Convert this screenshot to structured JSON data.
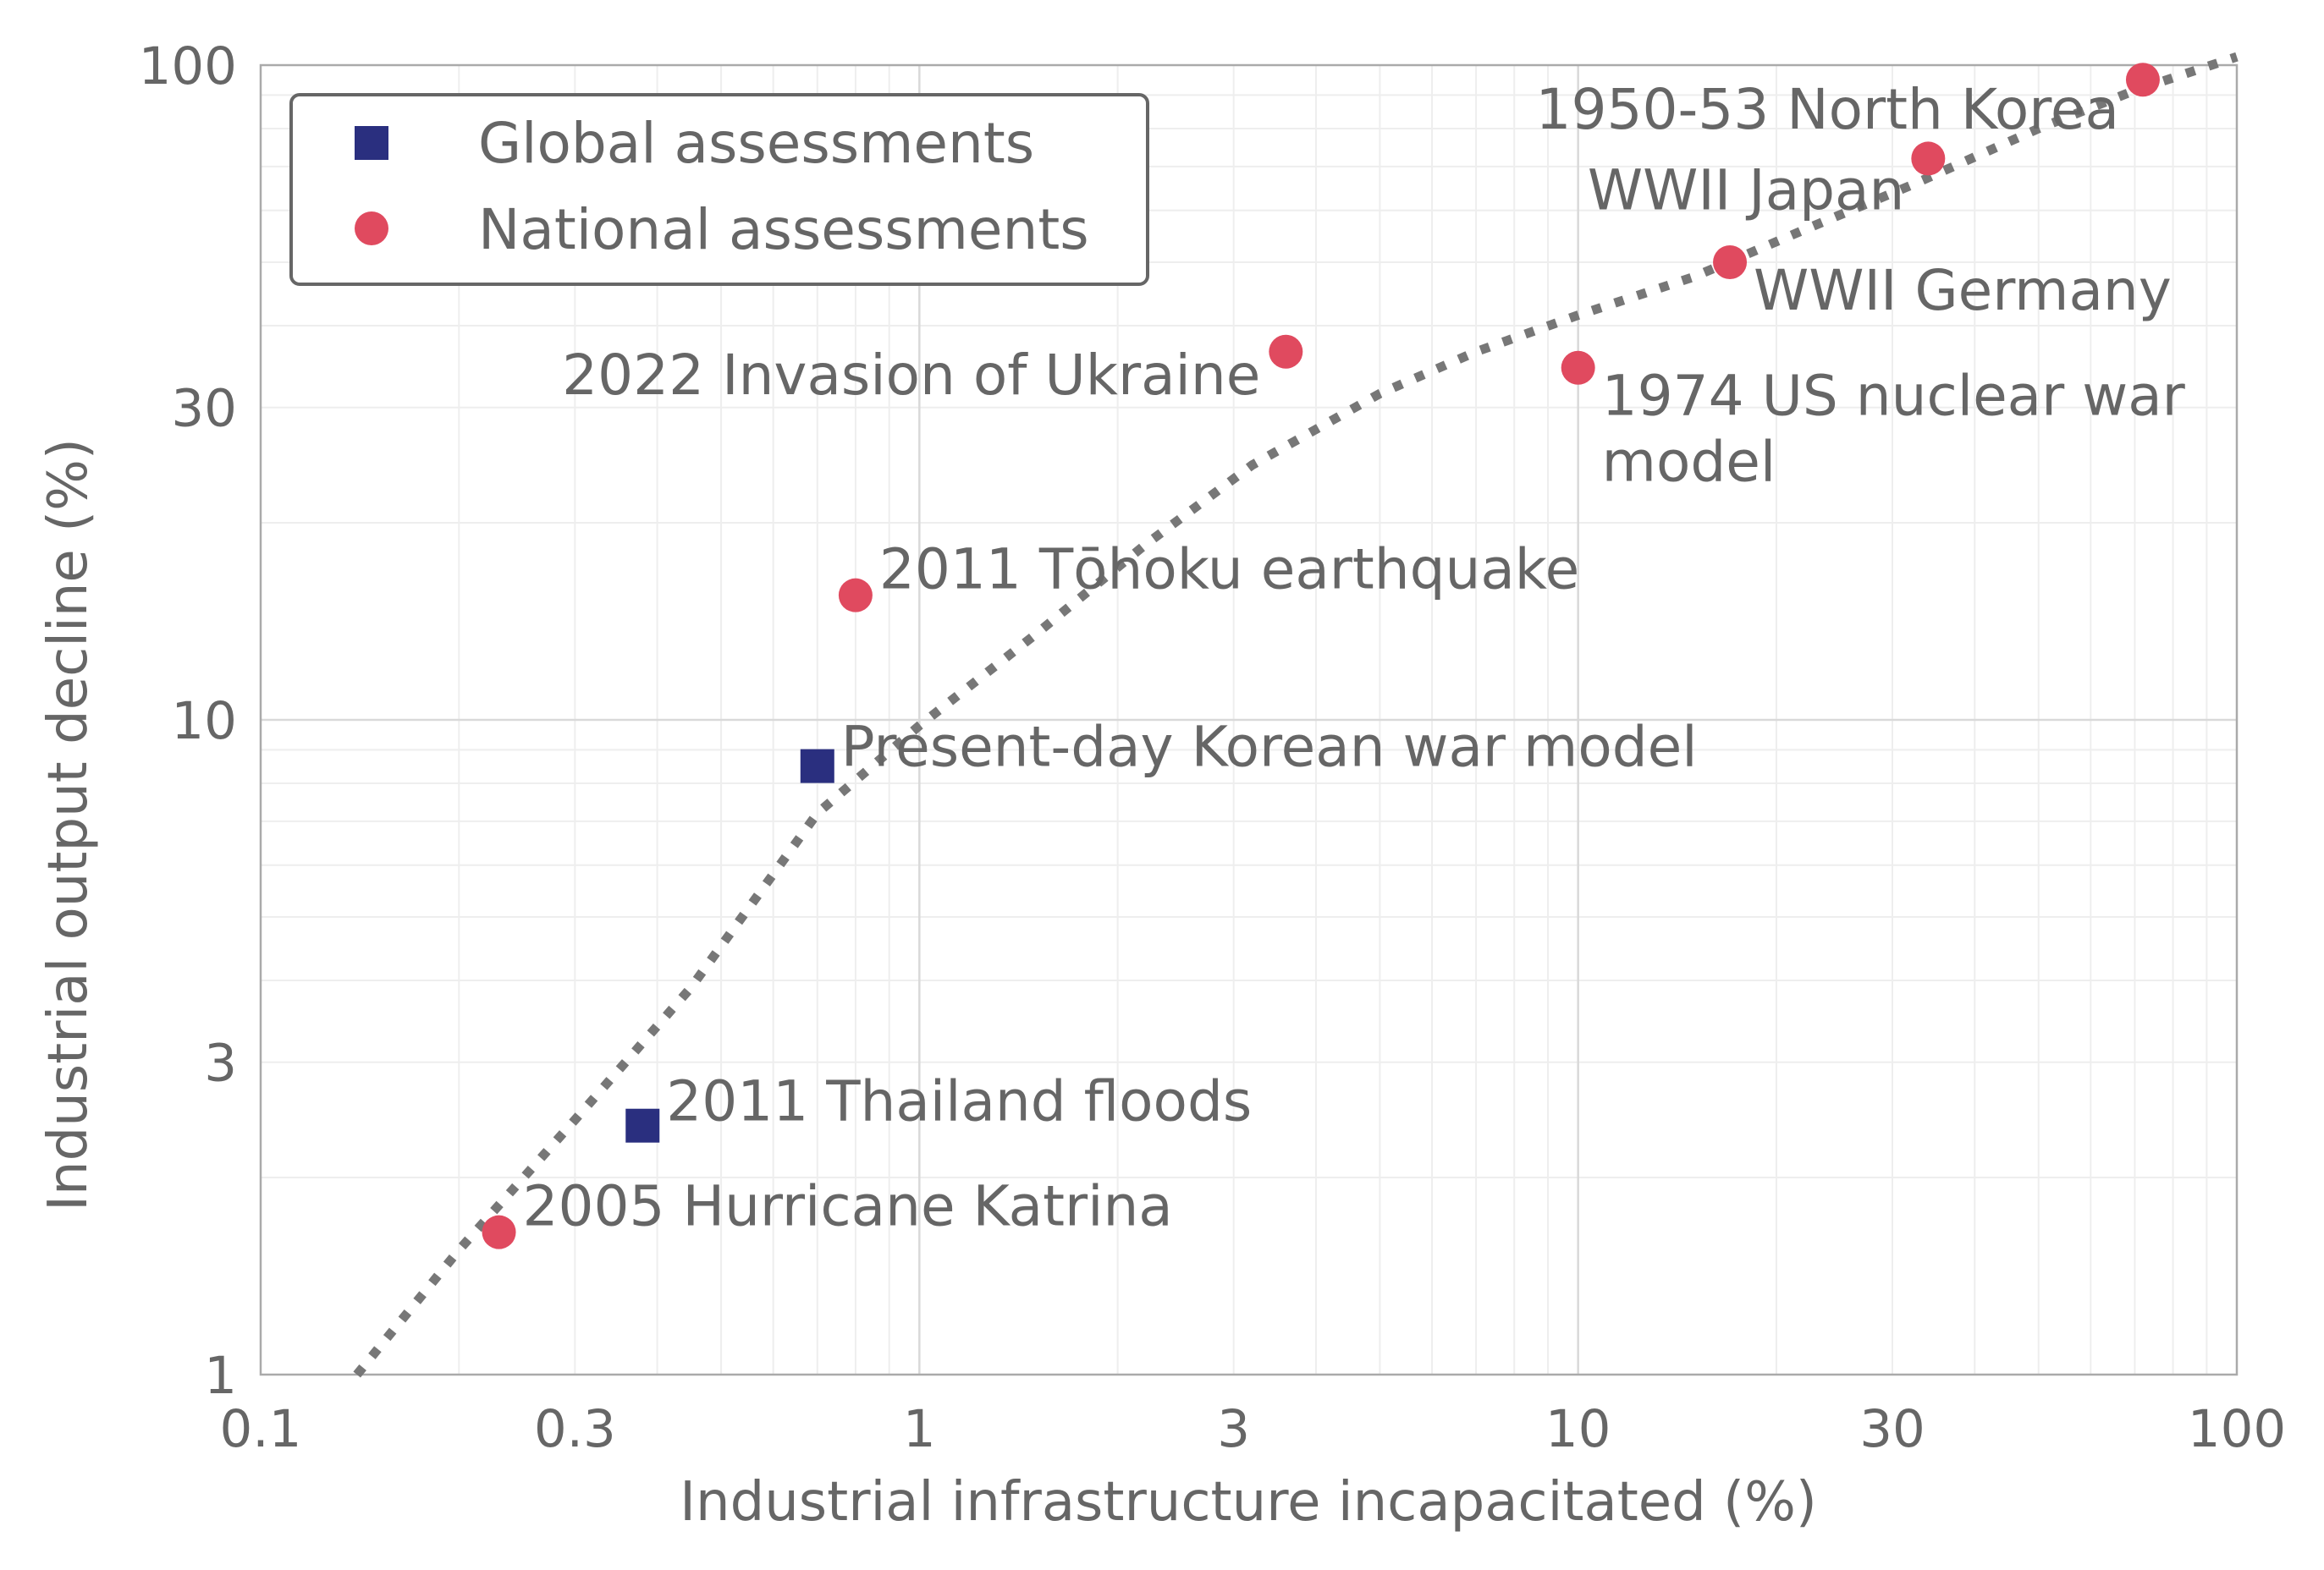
{
  "chart_data": {
    "type": "scatter",
    "title": "",
    "xlabel": "Industrial infrastructure incapacitated (%)",
    "ylabel": "Industrial output decline (%)",
    "xscale": "log",
    "yscale": "log",
    "xlim": [
      0.1,
      100
    ],
    "ylim": [
      1,
      100
    ],
    "x_ticks": [
      0.1,
      0.3,
      1,
      3,
      10,
      30,
      100
    ],
    "x_tick_labels": [
      "0.1",
      "0.3",
      "1",
      "3",
      "10",
      "30",
      "100"
    ],
    "y_ticks": [
      1,
      3,
      10,
      30,
      100
    ],
    "y_tick_labels": [
      "1",
      "3",
      "10",
      "30",
      "100"
    ],
    "grid": true,
    "legend_position": "top-left",
    "series": [
      {
        "name": "Global assessments",
        "marker": "square",
        "color": "#2a2f7f",
        "points": [
          {
            "label": "Present-day Korean war model",
            "x": 0.7,
            "y": 8.5
          },
          {
            "label": "2011 Thailand floods",
            "x": 0.38,
            "y": 2.4
          }
        ]
      },
      {
        "name": "National assessments",
        "marker": "circle",
        "color": "#e04a5f",
        "points": [
          {
            "label": "2005 Hurricane Katrina",
            "x": 0.23,
            "y": 1.65
          },
          {
            "label": "2011 Tōhoku earthquake",
            "x": 0.8,
            "y": 15.5
          },
          {
            "label": "2022 Invasion of Ukraine",
            "x": 3.6,
            "y": 36.5
          },
          {
            "label": "1974 US nuclear war model",
            "x": 10,
            "y": 34.5
          },
          {
            "label": "WWII Germany",
            "x": 17,
            "y": 50
          },
          {
            "label": "WWII Japan",
            "x": 34,
            "y": 72
          },
          {
            "label": "1950-53 North Korea",
            "x": 72,
            "y": 95
          }
        ]
      }
    ],
    "trend_line": {
      "style": "dotted",
      "color": "#777777",
      "points": [
        [
          0.14,
          1.0
        ],
        [
          0.2,
          1.55
        ],
        [
          0.3,
          2.45
        ],
        [
          0.45,
          3.9
        ],
        [
          0.7,
          7.2
        ],
        [
          1.0,
          9.8
        ],
        [
          1.5,
          13.5
        ],
        [
          2.2,
          18.5
        ],
        [
          3.2,
          24.5
        ],
        [
          5.0,
          31.5
        ],
        [
          7.0,
          36.5
        ],
        [
          10.0,
          41.5
        ],
        [
          15.0,
          47.5
        ],
        [
          22.0,
          56.0
        ],
        [
          32.0,
          65.5
        ],
        [
          50.0,
          80.0
        ],
        [
          70.0,
          91.5
        ],
        [
          100.0,
          103.0
        ]
      ]
    }
  }
}
